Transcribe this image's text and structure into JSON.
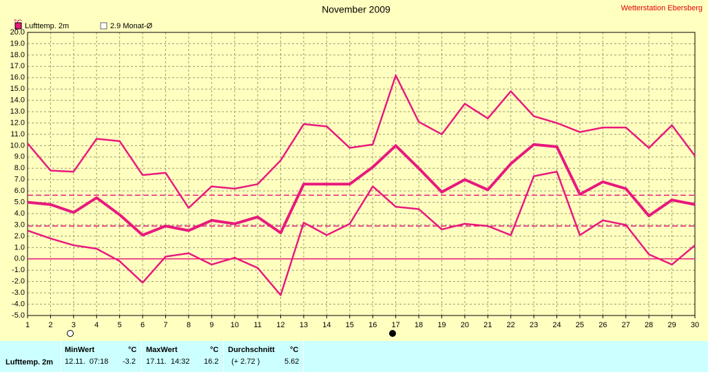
{
  "chart_data": {
    "type": "line",
    "title": "November 2009",
    "station": "Wetterstation Ebersberg",
    "y_unit": "°C",
    "legend": [
      {
        "label": "Lufttemp. 2m",
        "filled": true
      },
      {
        "label": "2.9 Monat-Ø",
        "filled": false
      }
    ],
    "color": "#e8197d",
    "x": [
      1,
      2,
      3,
      4,
      5,
      6,
      7,
      8,
      9,
      10,
      11,
      12,
      13,
      14,
      15,
      16,
      17,
      18,
      19,
      20,
      21,
      22,
      23,
      24,
      25,
      26,
      27,
      28,
      29,
      30
    ],
    "xlim": [
      1,
      30
    ],
    "xticks": [
      1,
      2,
      3,
      4,
      5,
      6,
      7,
      8,
      9,
      10,
      11,
      12,
      13,
      14,
      15,
      16,
      17,
      18,
      19,
      20,
      21,
      22,
      23,
      24,
      25,
      26,
      27,
      28,
      29,
      30
    ],
    "ylim": [
      -5,
      20
    ],
    "yticks": [
      {
        "value": 20,
        "label": "20.0"
      },
      {
        "value": 19,
        "label": "19.0"
      },
      {
        "value": 18,
        "label": "18.0"
      },
      {
        "value": 17,
        "label": "17.0"
      },
      {
        "value": 16,
        "label": "16.0"
      },
      {
        "value": 15,
        "label": "15.0"
      },
      {
        "value": 14,
        "label": "14.0"
      },
      {
        "value": 13,
        "label": "13.0"
      },
      {
        "value": 12,
        "label": "12.0"
      },
      {
        "value": 11,
        "label": "11.0"
      },
      {
        "value": 10,
        "label": "10.0"
      },
      {
        "value": 9,
        "label": "9.0"
      },
      {
        "value": 8,
        "label": "8.0"
      },
      {
        "value": 7,
        "label": "7.0"
      },
      {
        "value": 6,
        "label": "6.0"
      },
      {
        "value": 5,
        "label": "5.0"
      },
      {
        "value": 4,
        "label": "4.0"
      },
      {
        "value": 3,
        "label": "3.0"
      },
      {
        "value": 2,
        "label": "2.0"
      },
      {
        "value": 1,
        "label": "1.0"
      },
      {
        "value": 0,
        "label": "0.0"
      },
      {
        "value": -1,
        "label": "-1.0"
      },
      {
        "value": -2,
        "label": "-2.0"
      },
      {
        "value": -3,
        "label": "-3.0"
      },
      {
        "value": -4,
        "label": "-4.0"
      },
      {
        "value": -5,
        "label": "-5.0"
      }
    ],
    "grid": true,
    "hlines": [
      {
        "value": 5.62,
        "dashed": true
      },
      {
        "value": 2.9,
        "dashed": true
      },
      {
        "value": 0,
        "dashed": false
      }
    ],
    "series": [
      {
        "width": 2.5,
        "values": [
          10.2,
          7.8,
          7.7,
          10.6,
          10.4,
          7.4,
          7.6,
          4.5,
          6.4,
          6.2,
          6.6,
          8.7,
          11.9,
          11.7,
          9.8,
          10.1,
          16.2,
          12.1,
          11.0,
          13.7,
          12.4,
          14.8,
          12.6,
          12.0,
          11.2,
          11.6,
          11.6,
          9.8,
          11.8,
          9.1
        ]
      },
      {
        "width": 4,
        "values": [
          5.0,
          4.8,
          4.1,
          5.4,
          3.9,
          2.1,
          2.9,
          2.5,
          3.4,
          3.1,
          3.7,
          2.3,
          6.6,
          6.6,
          6.6,
          8.1,
          10.0,
          8.0,
          5.9,
          7.0,
          6.1,
          8.4,
          10.1,
          9.9,
          5.7,
          6.8,
          6.2,
          3.8,
          5.2,
          4.8
        ]
      },
      {
        "width": 2.5,
        "values": [
          2.5,
          1.8,
          1.2,
          0.9,
          -0.2,
          -2.1,
          0.2,
          0.5,
          -0.5,
          0.1,
          -0.8,
          -3.2,
          3.2,
          2.1,
          3.1,
          6.4,
          4.6,
          4.4,
          2.6,
          3.1,
          2.9,
          2.1,
          7.3,
          7.7,
          2.1,
          3.4,
          3.0,
          0.4,
          -0.5,
          1.2
        ]
      }
    ]
  },
  "table": {
    "headers": [
      "MinWert",
      "°C",
      "MaxWert",
      "°C",
      "Durchschnitt",
      "°C"
    ],
    "rows": [
      [
        "Lufttemp. 2m",
        "12.11.  07:18",
        "-3.2",
        "17.11.  14:32",
        "16.2",
        "(+ 2.72 )",
        "5.62"
      ]
    ]
  }
}
